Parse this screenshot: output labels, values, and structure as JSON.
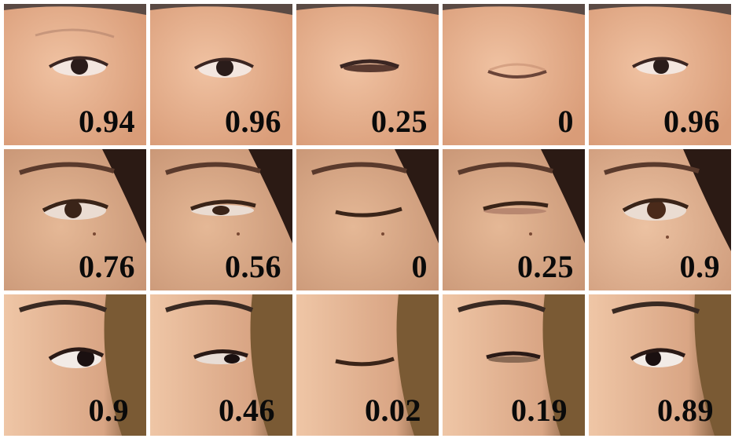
{
  "rows": [
    {
      "subject": "subject-1",
      "skin": "#e6b08f",
      "cells": [
        {
          "score": "0.94",
          "openness": 0.94
        },
        {
          "score": "0.96",
          "openness": 0.96
        },
        {
          "score": "0.25",
          "openness": 0.25
        },
        {
          "score": "0",
          "openness": 0.0
        },
        {
          "score": "0.96",
          "openness": 0.96
        }
      ]
    },
    {
      "subject": "subject-2",
      "skin": "#d9a98a",
      "cells": [
        {
          "score": "0.76",
          "openness": 0.76
        },
        {
          "score": "0.56",
          "openness": 0.56
        },
        {
          "score": "0",
          "openness": 0.0
        },
        {
          "score": "0.25",
          "openness": 0.25
        },
        {
          "score": "0.9",
          "openness": 0.9
        }
      ]
    },
    {
      "subject": "subject-3",
      "skin": "#e2b895",
      "cells": [
        {
          "score": "0.9",
          "openness": 0.9
        },
        {
          "score": "0.46",
          "openness": 0.46
        },
        {
          "score": "0.02",
          "openness": 0.02
        },
        {
          "score": "0.19",
          "openness": 0.19
        },
        {
          "score": "0.89",
          "openness": 0.89
        }
      ]
    }
  ]
}
